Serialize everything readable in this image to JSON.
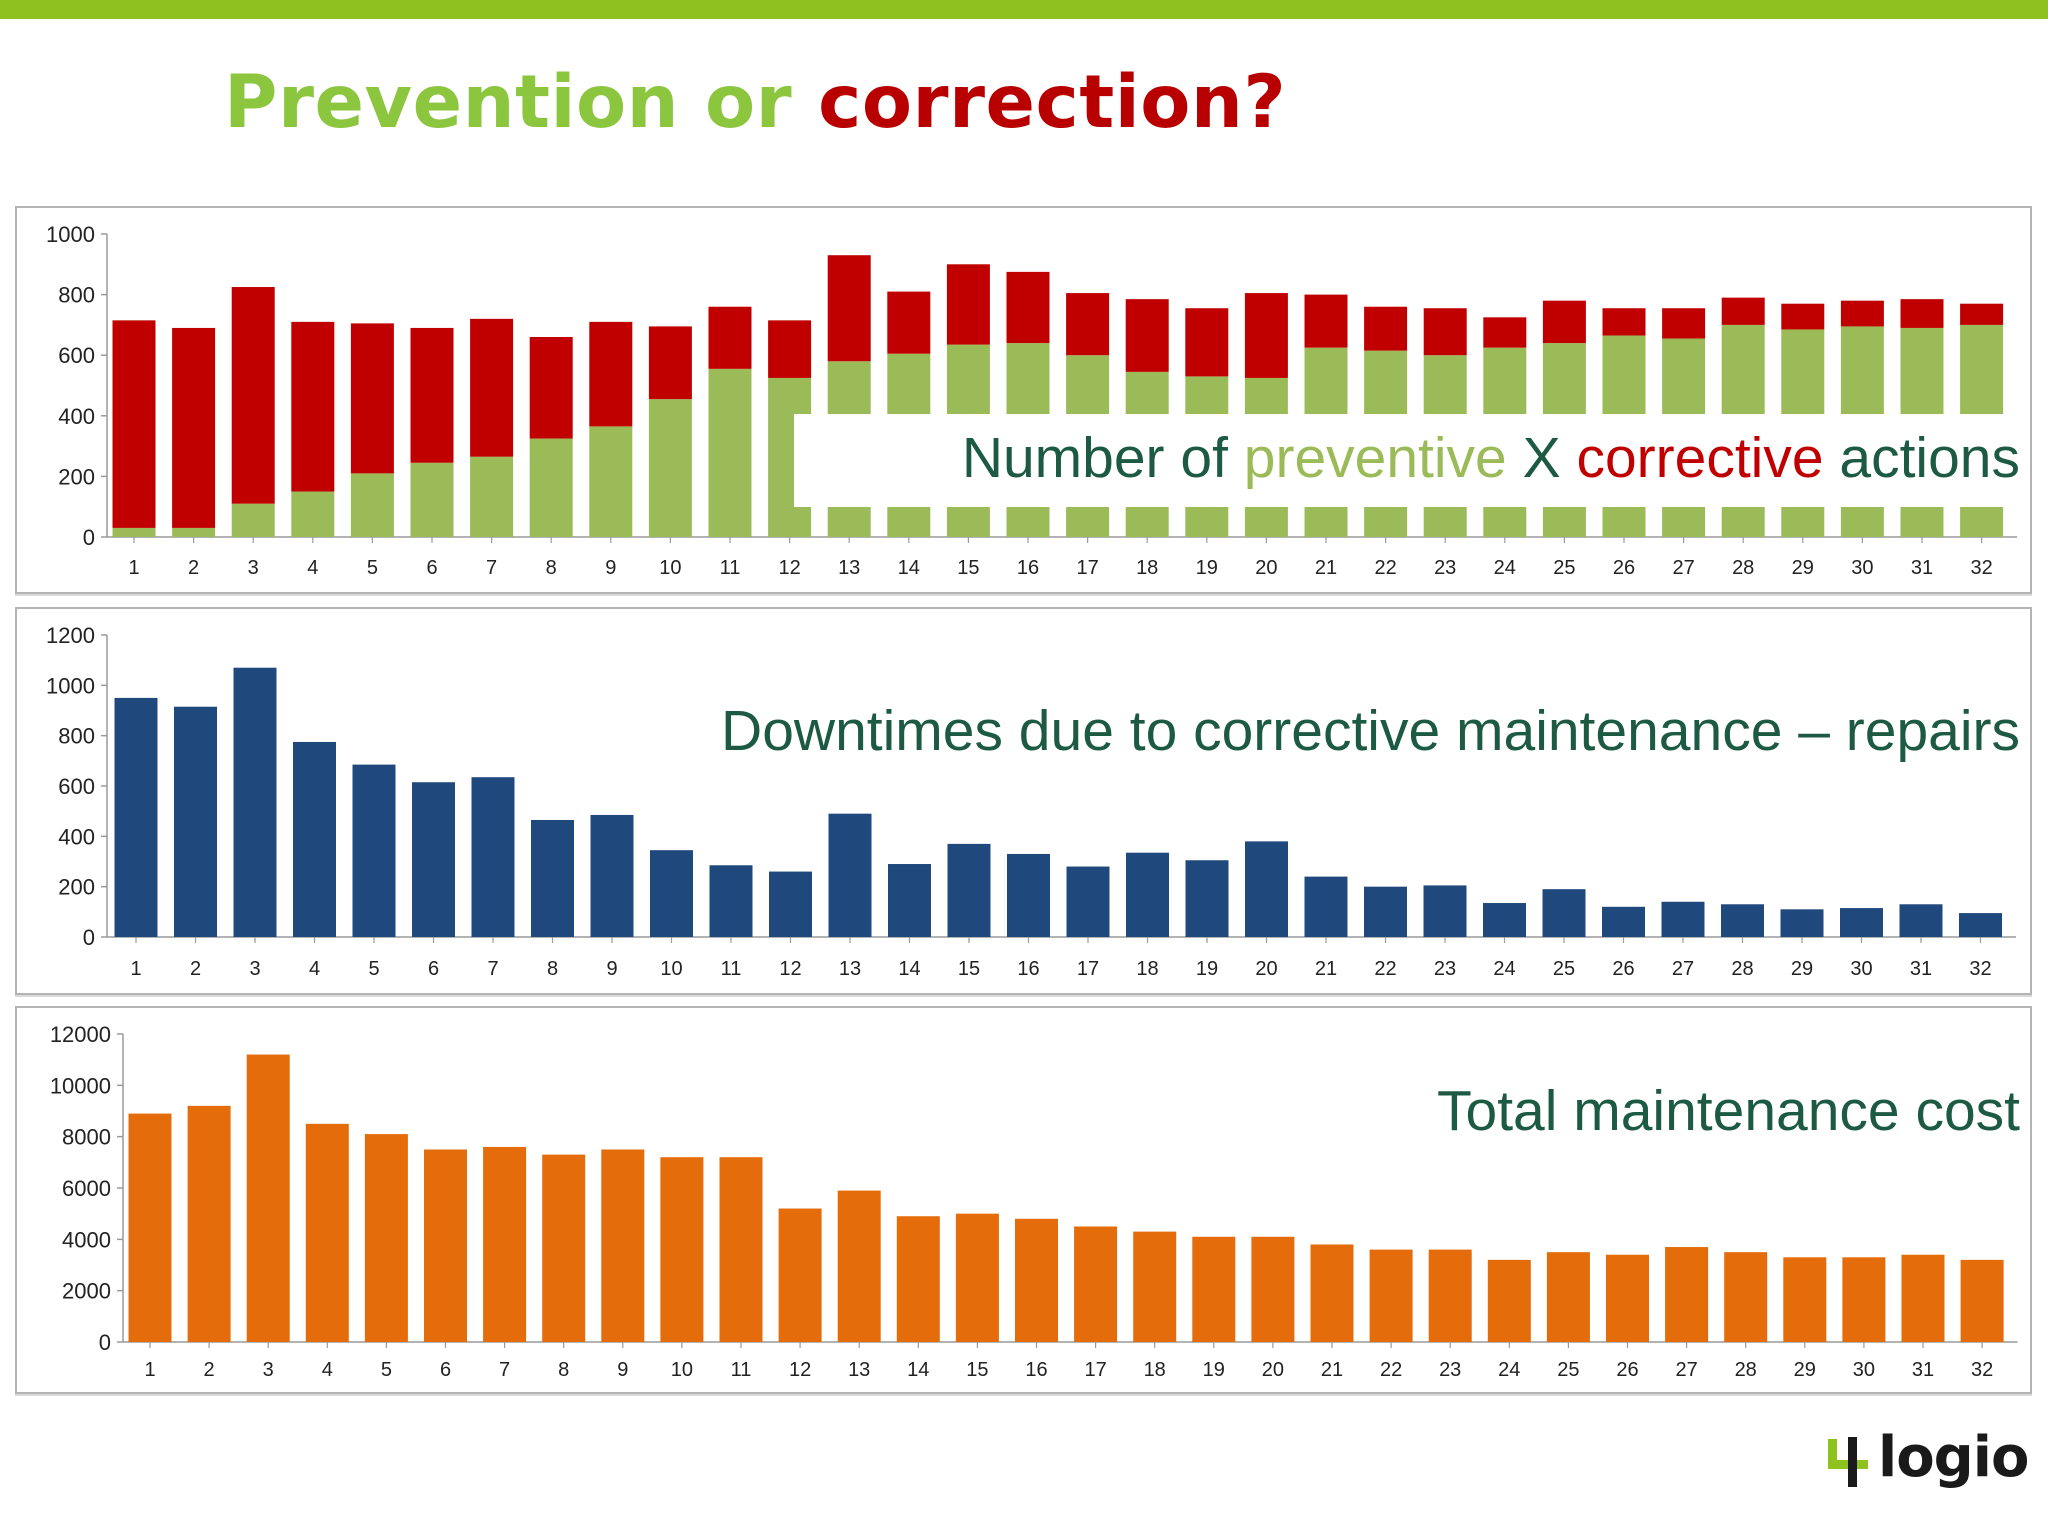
{
  "header": {
    "title_part1": "Prevention or ",
    "title_part2": "correction?"
  },
  "colors": {
    "accent_green": "#8dc21f",
    "preventive": "#9bbb59",
    "corrective": "#c00000",
    "downtime": "#1f497d",
    "cost": "#e46c0a",
    "overlay_text": "#1d5a43"
  },
  "overlays": {
    "actions": {
      "part1": "Number of ",
      "preventive": "preventive",
      "part2": " X ",
      "corrective": "corrective",
      "part3": " actions"
    },
    "downtime": "Downtimes due to corrective maintenance – repairs",
    "cost": "Total maintenance cost"
  },
  "logo": {
    "text": "logio",
    "icon": "logio-mark-icon"
  },
  "chart_data": [
    {
      "type": "bar",
      "stacked": true,
      "categories": [
        "1",
        "2",
        "3",
        "4",
        "5",
        "6",
        "7",
        "8",
        "9",
        "10",
        "11",
        "12",
        "13",
        "14",
        "15",
        "16",
        "17",
        "18",
        "19",
        "20",
        "21",
        "22",
        "23",
        "24",
        "25",
        "26",
        "27",
        "28",
        "29",
        "30",
        "31",
        "32"
      ],
      "series": [
        {
          "name": "preventive",
          "color": "#9bbb59",
          "values": [
            30,
            30,
            110,
            150,
            210,
            245,
            265,
            325,
            365,
            455,
            555,
            525,
            580,
            605,
            635,
            640,
            600,
            545,
            530,
            525,
            625,
            615,
            600,
            625,
            640,
            665,
            655,
            700,
            685,
            695,
            690,
            700
          ]
        },
        {
          "name": "corrective",
          "color": "#c00000",
          "values": [
            685,
            660,
            715,
            560,
            495,
            445,
            455,
            335,
            345,
            240,
            205,
            190,
            350,
            205,
            265,
            235,
            205,
            240,
            225,
            280,
            175,
            145,
            155,
            100,
            140,
            90,
            100,
            90,
            85,
            85,
            95,
            70
          ]
        }
      ],
      "ylim": [
        0,
        1000
      ],
      "yticks": [
        0,
        200,
        400,
        600,
        800,
        1000
      ],
      "grid": false,
      "legend": "none"
    },
    {
      "type": "bar",
      "categories": [
        "1",
        "2",
        "3",
        "4",
        "5",
        "6",
        "7",
        "8",
        "9",
        "10",
        "11",
        "12",
        "13",
        "14",
        "15",
        "16",
        "17",
        "18",
        "19",
        "20",
        "21",
        "22",
        "23",
        "24",
        "25",
        "26",
        "27",
        "28",
        "29",
        "30",
        "31",
        "32"
      ],
      "series": [
        {
          "name": "downtime",
          "color": "#1f497d",
          "values": [
            950,
            915,
            1070,
            775,
            685,
            615,
            635,
            465,
            485,
            345,
            285,
            260,
            490,
            290,
            370,
            330,
            280,
            335,
            305,
            380,
            240,
            200,
            205,
            135,
            190,
            120,
            140,
            130,
            110,
            115,
            130,
            95
          ]
        }
      ],
      "ylim": [
        0,
        1200
      ],
      "yticks": [
        0,
        200,
        400,
        600,
        800,
        1000,
        1200
      ],
      "grid": false,
      "legend": "none"
    },
    {
      "type": "bar",
      "categories": [
        "1",
        "2",
        "3",
        "4",
        "5",
        "6",
        "7",
        "8",
        "9",
        "10",
        "11",
        "12",
        "13",
        "14",
        "15",
        "16",
        "17",
        "18",
        "19",
        "20",
        "21",
        "22",
        "23",
        "24",
        "25",
        "26",
        "27",
        "28",
        "29",
        "30",
        "31",
        "32"
      ],
      "series": [
        {
          "name": "cost",
          "color": "#e46c0a",
          "values": [
            8900,
            9200,
            11200,
            8500,
            8100,
            7500,
            7600,
            7300,
            7500,
            7200,
            7200,
            5200,
            5900,
            4900,
            5000,
            4800,
            4500,
            4300,
            4100,
            4100,
            3800,
            3600,
            3600,
            3200,
            3500,
            3400,
            3700,
            3500,
            3300,
            3300,
            3400,
            3200
          ]
        }
      ],
      "ylim": [
        0,
        12000
      ],
      "yticks": [
        0,
        2000,
        4000,
        6000,
        8000,
        10000,
        12000
      ],
      "grid": false,
      "legend": "none"
    }
  ]
}
